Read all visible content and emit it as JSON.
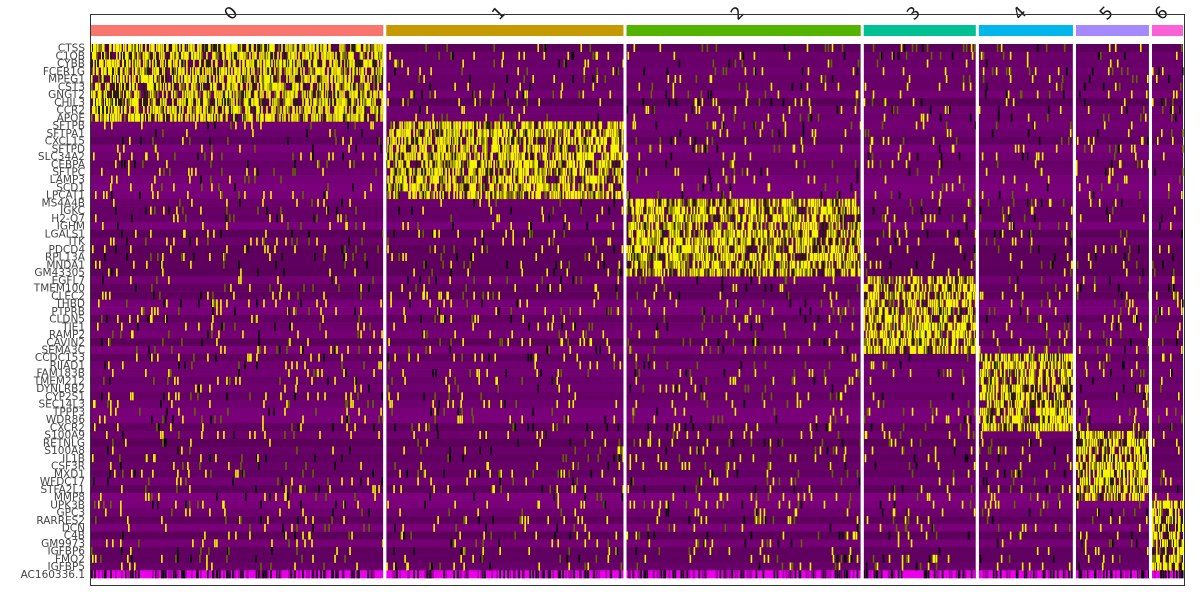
{
  "chart_data": {
    "type": "heatmap",
    "title": "",
    "xlabel": "",
    "ylabel": "",
    "clusters": [
      {
        "name": "0",
        "color": "#F8766D",
        "cells": 292
      },
      {
        "name": "1",
        "color": "#C49A00",
        "cells": 237
      },
      {
        "name": "2",
        "color": "#53B400",
        "cells": 234
      },
      {
        "name": "3",
        "color": "#00C094",
        "cells": 112
      },
      {
        "name": "4",
        "color": "#00B6EB",
        "cells": 94
      },
      {
        "name": "5",
        "color": "#A58AFF",
        "cells": 73
      },
      {
        "name": "6",
        "color": "#FB61D7",
        "cells": 31
      }
    ],
    "genes": [
      "CTSS",
      "C1QB",
      "CYBB",
      "FCER1G",
      "MPEG1",
      "CST3",
      "GNGT2",
      "CHIL3",
      "CCR2",
      "APOE",
      "SFTPB",
      "SFTPA1",
      "CXCL15",
      "SFTPD",
      "SLC34A2",
      "CEBPA",
      "SFTPC",
      "LAMP3",
      "SCD1",
      "LPCAT1",
      "MS4A4B",
      "IGKC",
      "H2-Q7",
      "IGHM",
      "LGALS1",
      "ITK",
      "PDCD4",
      "RPL13A",
      "MNDA1",
      "GM43305",
      "EGFL7",
      "TMEM100",
      "CLEC2",
      "THBD",
      "PTPRB",
      "CLDN5",
      "TIE1",
      "RAMP2",
      "CAVIN2",
      "SEMA3C",
      "CCDC153",
      "RIIAD1",
      "FAM183B",
      "TMEM212",
      "DYNLRB2",
      "CYP2S1",
      "SEC14L3",
      "TPPP3",
      "WDR86",
      "CXCR2",
      "S100A9",
      "RETNLG",
      "S100A8",
      "IL1B",
      "CSF3R",
      "MXD1",
      "WFDC17",
      "STFA2L1",
      "MMP8",
      "UPK3B",
      "GPC3",
      "RARRES2",
      "DCN",
      "C4B",
      "GM9973",
      "IGFBP6",
      "FMO2",
      "IGFBP5",
      "AC160336.1"
    ],
    "marker_gene_index_ranges": {
      "0": [
        0,
        9
      ],
      "1": [
        10,
        19
      ],
      "2": [
        20,
        29
      ],
      "3": [
        30,
        39
      ],
      "4": [
        40,
        49
      ],
      "5": [
        50,
        58
      ],
      "6": [
        59,
        67
      ]
    },
    "color_scale": {
      "low": "#FF00FF",
      "mid": "#000000",
      "high": "#FFFF00"
    },
    "legend": "none",
    "grid": false
  }
}
